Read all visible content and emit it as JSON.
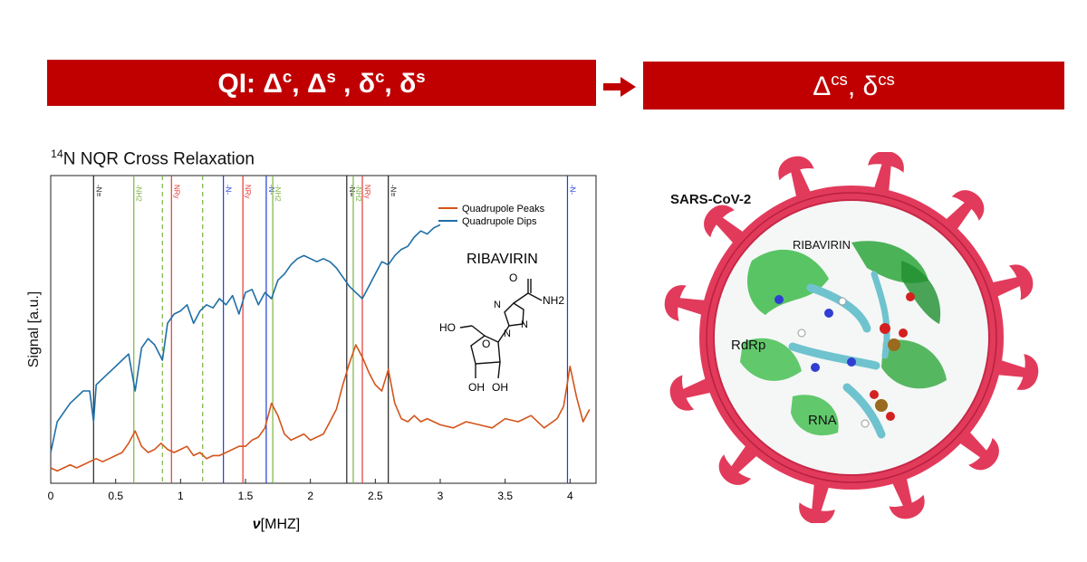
{
  "banner_left": {
    "prefix": "QI:",
    "terms": [
      {
        "sym": "Δ",
        "sup": "c",
        "sep": ", "
      },
      {
        "sym": "Δ",
        "sup": "s",
        "sep": " , "
      },
      {
        "sym": "δ",
        "sup": "c",
        "sep": ", "
      },
      {
        "sym": "δ",
        "sup": "s",
        "sep": ""
      }
    ]
  },
  "banner_right": {
    "terms": [
      {
        "sym": "Δ",
        "sup": "cs",
        "sep": ", "
      },
      {
        "sym": "δ",
        "sup": "cs",
        "sep": ""
      }
    ]
  },
  "chart_data": {
    "type": "line",
    "title_prefix_sup": "14",
    "title_text": "N NQR Cross Relaxation",
    "xlabel_symbol": "ν",
    "xlabel_unit": "[MHZ]",
    "ylabel": "Signal [a.u.]",
    "xlim": [
      0,
      4.2
    ],
    "ylim": [
      0,
      1
    ],
    "xticks": [
      "0",
      "0.5",
      "1",
      "1.5",
      "2",
      "2.5",
      "3",
      "3.5",
      "4"
    ],
    "legend": {
      "position": "top-right"
    },
    "series": [
      {
        "name": "Quadrupole Peaks",
        "color": "#d4541a",
        "x": [
          0.0,
          0.05,
          0.1,
          0.15,
          0.2,
          0.25,
          0.3,
          0.35,
          0.4,
          0.45,
          0.5,
          0.55,
          0.6,
          0.65,
          0.7,
          0.75,
          0.8,
          0.85,
          0.9,
          0.95,
          1.0,
          1.05,
          1.1,
          1.15,
          1.2,
          1.25,
          1.3,
          1.35,
          1.4,
          1.45,
          1.5,
          1.55,
          1.6,
          1.65,
          1.7,
          1.75,
          1.8,
          1.85,
          1.9,
          1.95,
          2.0,
          2.05,
          2.1,
          2.15,
          2.2,
          2.25,
          2.3,
          2.35,
          2.4,
          2.45,
          2.5,
          2.55,
          2.6,
          2.65,
          2.7,
          2.75,
          2.8,
          2.85,
          2.9,
          2.95,
          3.0,
          3.1,
          3.2,
          3.3,
          3.4,
          3.5,
          3.6,
          3.7,
          3.8,
          3.9,
          3.95,
          4.0,
          4.05,
          4.1,
          4.15
        ],
        "y": [
          0.05,
          0.04,
          0.05,
          0.06,
          0.05,
          0.06,
          0.07,
          0.08,
          0.07,
          0.08,
          0.09,
          0.1,
          0.13,
          0.17,
          0.12,
          0.1,
          0.11,
          0.13,
          0.11,
          0.1,
          0.11,
          0.12,
          0.09,
          0.1,
          0.08,
          0.09,
          0.09,
          0.1,
          0.11,
          0.12,
          0.12,
          0.14,
          0.15,
          0.18,
          0.26,
          0.22,
          0.16,
          0.14,
          0.15,
          0.16,
          0.14,
          0.15,
          0.16,
          0.2,
          0.24,
          0.32,
          0.39,
          0.45,
          0.41,
          0.36,
          0.32,
          0.3,
          0.37,
          0.26,
          0.21,
          0.2,
          0.22,
          0.2,
          0.21,
          0.2,
          0.19,
          0.18,
          0.2,
          0.19,
          0.18,
          0.21,
          0.2,
          0.22,
          0.18,
          0.21,
          0.25,
          0.38,
          0.28,
          0.2,
          0.24
        ]
      },
      {
        "name": "Quadrupole Dips",
        "color": "#1e6ea6",
        "x": [
          0.0,
          0.05,
          0.1,
          0.15,
          0.2,
          0.25,
          0.3,
          0.33,
          0.35,
          0.4,
          0.45,
          0.5,
          0.55,
          0.6,
          0.65,
          0.7,
          0.75,
          0.8,
          0.86,
          0.9,
          0.95,
          1.0,
          1.05,
          1.1,
          1.15,
          1.2,
          1.25,
          1.3,
          1.35,
          1.4,
          1.45,
          1.5,
          1.55,
          1.6,
          1.65,
          1.7,
          1.75,
          1.8,
          1.85,
          1.9,
          1.95,
          2.0,
          2.05,
          2.1,
          2.15,
          2.2,
          2.25,
          2.3,
          2.35,
          2.4,
          2.45,
          2.5,
          2.55,
          2.6,
          2.65,
          2.7,
          2.75,
          2.8,
          2.85,
          2.9,
          2.95,
          3.0
        ],
        "y": [
          0.1,
          0.2,
          0.23,
          0.26,
          0.28,
          0.3,
          0.3,
          0.2,
          0.32,
          0.34,
          0.36,
          0.38,
          0.4,
          0.42,
          0.3,
          0.44,
          0.47,
          0.45,
          0.4,
          0.52,
          0.55,
          0.56,
          0.58,
          0.52,
          0.56,
          0.58,
          0.57,
          0.6,
          0.58,
          0.61,
          0.55,
          0.62,
          0.63,
          0.58,
          0.62,
          0.6,
          0.66,
          0.68,
          0.71,
          0.73,
          0.74,
          0.73,
          0.72,
          0.73,
          0.72,
          0.7,
          0.67,
          0.64,
          0.62,
          0.6,
          0.64,
          0.68,
          0.72,
          0.71,
          0.74,
          0.76,
          0.77,
          0.8,
          0.82,
          0.81,
          0.83,
          0.84
        ]
      }
    ],
    "marker_lines": [
      {
        "x": 0.33,
        "label": "-N≡",
        "color": "#222222",
        "style": "solid"
      },
      {
        "x": 0.64,
        "label": "-NH2",
        "color": "#7cb342",
        "style": "solid"
      },
      {
        "x": 0.86,
        "label": "",
        "color": "#7cb342",
        "style": "dashed"
      },
      {
        "x": 0.93,
        "label": "NRy",
        "color": "#e53935",
        "style": "solid"
      },
      {
        "x": 1.17,
        "label": "",
        "color": "#7cb342",
        "style": "dashed"
      },
      {
        "x": 1.33,
        "label": "-N-",
        "color": "#1e3fd6",
        "style": "solid"
      },
      {
        "x": 1.48,
        "label": "NRy",
        "color": "#e53935",
        "style": "solid"
      },
      {
        "x": 1.66,
        "label": "-N-",
        "color": "#1e3fd6",
        "style": "solid"
      },
      {
        "x": 1.71,
        "label": "-NH2",
        "color": "#7cb342",
        "style": "solid"
      },
      {
        "x": 2.28,
        "label": "-N≡",
        "color": "#222222",
        "style": "solid"
      },
      {
        "x": 2.33,
        "label": "-NH2",
        "color": "#7cb342",
        "style": "solid"
      },
      {
        "x": 2.4,
        "label": "NRy",
        "color": "#e53935",
        "style": "solid"
      },
      {
        "x": 2.6,
        "label": "-N≡",
        "color": "#222222",
        "style": "solid"
      },
      {
        "x": 3.98,
        "label": "-N-",
        "color": "#1e3fd6",
        "style": "solid"
      }
    ]
  },
  "molecule": {
    "name": "RIBAVIRIN",
    "labels": [
      "O",
      "NH2",
      "N",
      "N",
      "N",
      "HO",
      "O",
      "OH",
      "OH"
    ]
  },
  "illustration": {
    "title": "SARS-CoV-2",
    "labels": [
      "RIBAVIRIN",
      "RdRp",
      "RNA"
    ],
    "virus_color": "#e23a5b"
  }
}
